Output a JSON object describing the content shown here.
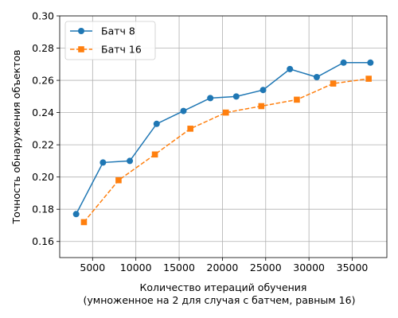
{
  "chart_data": {
    "type": "line",
    "xlabel": "Количество итераций обучения",
    "xlabel_line2": "(умноженное на 2 для случая с батчем, равным 16)",
    "ylabel": "Точность обнаружения объектов",
    "xlim": [
      1200,
      39000
    ],
    "ylim": [
      0.15,
      0.3
    ],
    "xticks": [
      5000,
      10000,
      15000,
      20000,
      25000,
      30000,
      35000
    ],
    "yticks": [
      0.16,
      0.18,
      0.2,
      0.22,
      0.24,
      0.26,
      0.28,
      0.3
    ],
    "grid": true,
    "legend_position": "top-left",
    "series": [
      {
        "name": "Батч 8",
        "color": "#1f77b4",
        "line_style": "solid",
        "marker": "circle",
        "x": [
          3100,
          6200,
          9300,
          12400,
          15500,
          18600,
          21600,
          24700,
          27800,
          30900,
          34000,
          37100
        ],
        "y": [
          0.177,
          0.209,
          0.21,
          0.233,
          0.241,
          0.249,
          0.25,
          0.254,
          0.267,
          0.262,
          0.271,
          0.271
        ]
      },
      {
        "name": "Батч 16",
        "color": "#ff7f0e",
        "line_style": "dashed",
        "marker": "square",
        "x": [
          4000,
          8000,
          12200,
          16300,
          20400,
          24500,
          28600,
          32800,
          36900
        ],
        "y": [
          0.172,
          0.198,
          0.214,
          0.23,
          0.24,
          0.244,
          0.248,
          0.258,
          0.261
        ]
      }
    ]
  }
}
